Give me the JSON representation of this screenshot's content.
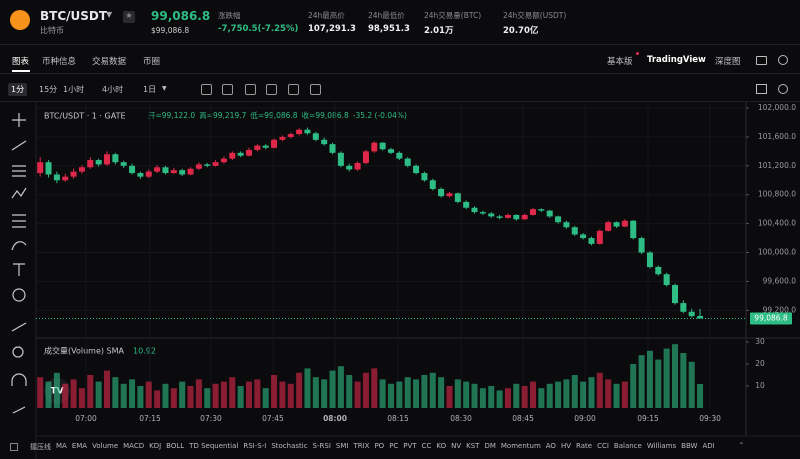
{
  "header": {
    "symbol": "BTC/USDT",
    "name": "比特币",
    "price": "99,086.8",
    "price_usd": "$99,086.8",
    "stats": [
      {
        "label": "涨跌幅",
        "value": "-7,750.5(-7.25%)"
      },
      {
        "label": "24h最高价",
        "value": "107,291.3"
      },
      {
        "label": "24h最低价",
        "value": "98,951.3"
      },
      {
        "label": "24h交易量(BTC)",
        "value": "2.01万"
      },
      {
        "label": "24h交易额(USDT)",
        "value": "20.70亿"
      }
    ]
  },
  "tabs": [
    "图表",
    "币种信息",
    "交易数据",
    "币圈"
  ],
  "views": [
    "基本版",
    "TradingView",
    "深度图"
  ],
  "intervals": [
    "1分",
    "15分",
    "1小时",
    "4小时",
    "1日"
  ],
  "indicators": [
    "擂压线",
    "MA",
    "EMA",
    "Volume",
    "MACD",
    "KDJ",
    "BOLL",
    "TD Sequential",
    "RSI-S-I",
    "Stochastic",
    "S-RSI",
    "SMI",
    "TRIX",
    "PO",
    "PC",
    "PVT",
    "CC",
    "KO",
    "NV",
    "KST",
    "DM",
    "Momentum",
    "AO",
    "HV",
    "Rate",
    "CCI",
    "Balance",
    "Williams",
    "BBW",
    "ADI"
  ],
  "chart_data": {
    "type": "candlestick",
    "symbol_line": "BTC/USDT · 1 · GATE",
    "ohlc_readout": [
      "开=99,122.0",
      "高=99,219.7",
      "低=99,086.8",
      "收=99,086.8",
      "-35.2 (-0.04%)"
    ],
    "volume_title": "成交量(Volume) SMA",
    "volume_value": "10.92",
    "last_price_label": "99,086.8",
    "up_color": "#e0294a",
    "down_color": "#2ebd85",
    "grid": true,
    "ylim": [
      98900,
      102100
    ],
    "yticks": [
      {
        "value": 102000,
        "label": "102,000.0"
      },
      {
        "value": 101600,
        "label": "101,600.0"
      },
      {
        "value": 101200,
        "label": "101,200.0"
      },
      {
        "value": 100800,
        "label": "100,800.0"
      },
      {
        "value": 100400,
        "label": "100,400.0"
      },
      {
        "value": 100000,
        "label": "100,000.0"
      },
      {
        "value": 99600,
        "label": "99,600.0"
      },
      {
        "value": 99200,
        "label": "99,200.0"
      }
    ],
    "volume_ylim": [
      0,
      33
    ],
    "volume_yticks": [
      10,
      20,
      30
    ],
    "xlim": [
      0,
      85
    ],
    "xticks": [
      {
        "value": 5.99,
        "label": "07:00"
      },
      {
        "value": 13.65,
        "label": "07:15"
      },
      {
        "value": 20.95,
        "label": "07:30"
      },
      {
        "value": 28.37,
        "label": "07:45"
      },
      {
        "value": 35.8,
        "label": "08:00"
      },
      {
        "value": 43.34,
        "label": "08:15"
      },
      {
        "value": 50.89,
        "label": "08:30"
      },
      {
        "value": 58.31,
        "label": "08:45"
      },
      {
        "value": 65.73,
        "label": "09:00"
      },
      {
        "value": 73.27,
        "label": "09:15"
      },
      {
        "value": 80.7,
        "label": "09:30"
      }
    ],
    "candles": [
      [
        101100,
        101320,
        101050,
        101250,
        14
      ],
      [
        101250,
        101280,
        101040,
        101080,
        12
      ],
      [
        101080,
        101120,
        100960,
        101000,
        16
      ],
      [
        101000,
        101090,
        100980,
        101050,
        11
      ],
      [
        101050,
        101160,
        101020,
        101120,
        13
      ],
      [
        101120,
        101210,
        101090,
        101180,
        9
      ],
      [
        101180,
        101320,
        101160,
        101280,
        15
      ],
      [
        101280,
        101300,
        101190,
        101220,
        12
      ],
      [
        101220,
        101400,
        101200,
        101360,
        17
      ],
      [
        101360,
        101380,
        101220,
        101250,
        14
      ],
      [
        101250,
        101270,
        101170,
        101200,
        11
      ],
      [
        101200,
        101230,
        101080,
        101100,
        13
      ],
      [
        101100,
        101120,
        101020,
        101050,
        10
      ],
      [
        101050,
        101150,
        101030,
        101120,
        12
      ],
      [
        101120,
        101210,
        101100,
        101180,
        8
      ],
      [
        101180,
        101200,
        101080,
        101100,
        11
      ],
      [
        101100,
        101170,
        101090,
        101140,
        9
      ],
      [
        101140,
        101160,
        101060,
        101080,
        12
      ],
      [
        101080,
        101180,
        101070,
        101160,
        10
      ],
      [
        101160,
        101250,
        101140,
        101220,
        13
      ],
      [
        101220,
        101240,
        101180,
        101200,
        9
      ],
      [
        101200,
        101280,
        101190,
        101250,
        11
      ],
      [
        101250,
        101330,
        101230,
        101300,
        12
      ],
      [
        101300,
        101400,
        101280,
        101380,
        14
      ],
      [
        101380,
        101400,
        101320,
        101340,
        10
      ],
      [
        101340,
        101450,
        101330,
        101420,
        12
      ],
      [
        101420,
        101500,
        101400,
        101480,
        13
      ],
      [
        101480,
        101500,
        101430,
        101450,
        9
      ],
      [
        101450,
        101580,
        101440,
        101560,
        15
      ],
      [
        101560,
        101620,
        101540,
        101600,
        12
      ],
      [
        101600,
        101660,
        101580,
        101640,
        11
      ],
      [
        101640,
        101720,
        101620,
        101700,
        16
      ],
      [
        101700,
        101730,
        101630,
        101650,
        18
      ],
      [
        101650,
        101670,
        101540,
        101560,
        14
      ],
      [
        101560,
        101590,
        101480,
        101500,
        13
      ],
      [
        101500,
        101520,
        101360,
        101380,
        17
      ],
      [
        101380,
        101400,
        101180,
        101200,
        19
      ],
      [
        101200,
        101230,
        101120,
        101150,
        15
      ],
      [
        101150,
        101260,
        101130,
        101240,
        12
      ],
      [
        101240,
        101420,
        101220,
        101400,
        16
      ],
      [
        101400,
        101540,
        101380,
        101520,
        18
      ],
      [
        101520,
        101530,
        101410,
        101430,
        13
      ],
      [
        101430,
        101450,
        101360,
        101380,
        11
      ],
      [
        101380,
        101400,
        101280,
        101300,
        12
      ],
      [
        101300,
        101320,
        101180,
        101200,
        14
      ],
      [
        101200,
        101220,
        101080,
        101100,
        13
      ],
      [
        101100,
        101120,
        100980,
        101000,
        15
      ],
      [
        101000,
        101020,
        100860,
        100880,
        16
      ],
      [
        100880,
        100900,
        100760,
        100780,
        14
      ],
      [
        100780,
        100840,
        100760,
        100820,
        10
      ],
      [
        100820,
        100830,
        100680,
        100700,
        13
      ],
      [
        100700,
        100720,
        100600,
        100620,
        12
      ],
      [
        100620,
        100640,
        100540,
        100560,
        11
      ],
      [
        100560,
        100580,
        100520,
        100540,
        9
      ],
      [
        100540,
        100560,
        100480,
        100500,
        10
      ],
      [
        100500,
        100520,
        100460,
        100480,
        8
      ],
      [
        100480,
        100540,
        100470,
        100520,
        9
      ],
      [
        100520,
        100530,
        100440,
        100460,
        11
      ],
      [
        100460,
        100540,
        100450,
        100520,
        10
      ],
      [
        100520,
        100620,
        100510,
        100600,
        12
      ],
      [
        100600,
        100610,
        100560,
        100580,
        9
      ],
      [
        100580,
        100590,
        100480,
        100500,
        11
      ],
      [
        100500,
        100510,
        100400,
        100420,
        12
      ],
      [
        100420,
        100440,
        100330,
        100350,
        13
      ],
      [
        100350,
        100370,
        100230,
        100250,
        15
      ],
      [
        100250,
        100270,
        100180,
        100200,
        12
      ],
      [
        100200,
        100220,
        100100,
        100120,
        14
      ],
      [
        100120,
        100320,
        100110,
        100300,
        16
      ],
      [
        100300,
        100440,
        100290,
        100420,
        13
      ],
      [
        100420,
        100430,
        100340,
        100360,
        11
      ],
      [
        100360,
        100460,
        100350,
        100440,
        12
      ],
      [
        100440,
        100450,
        100180,
        100200,
        20
      ],
      [
        100200,
        100220,
        99980,
        100000,
        24
      ],
      [
        100000,
        100020,
        99780,
        99800,
        26
      ],
      [
        99800,
        99820,
        99680,
        99700,
        22
      ],
      [
        99700,
        99720,
        99530,
        99550,
        27
      ],
      [
        99550,
        99570,
        99280,
        99300,
        29
      ],
      [
        99300,
        99340,
        99160,
        99180,
        25
      ],
      [
        99180,
        99220,
        99100,
        99120,
        21
      ],
      [
        99122.0,
        99219.7,
        99086.8,
        99086.8,
        10.92
      ]
    ]
  }
}
